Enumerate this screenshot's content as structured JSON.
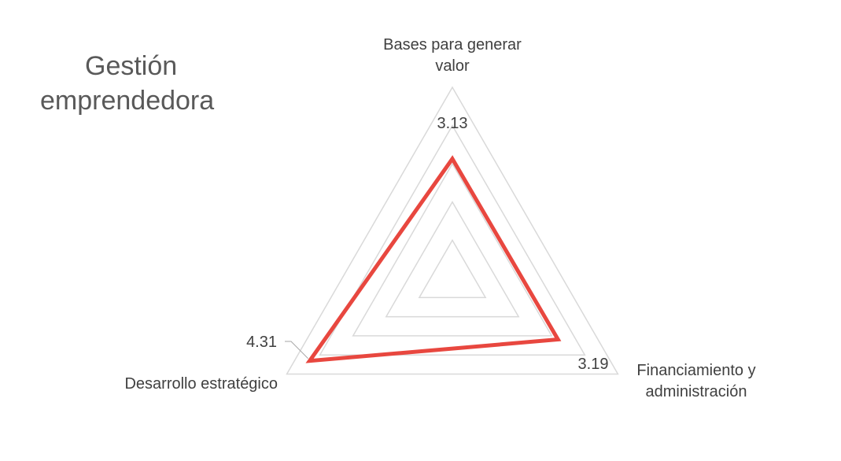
{
  "chart_data": {
    "type": "radar",
    "title_lines": [
      "Gestión",
      "emprendedora"
    ],
    "categories": [
      {
        "lines": [
          "Bases para generar",
          "valor"
        ]
      },
      {
        "lines": [
          "Financiamiento y",
          "administración"
        ]
      },
      {
        "lines": [
          "Desarrollo estratégico"
        ]
      }
    ],
    "series": [
      {
        "values": [
          3.13,
          3.19,
          4.31
        ],
        "data_labels": [
          "3.13",
          "3.19",
          "4.31"
        ],
        "color": "#e8473f"
      }
    ],
    "rlim": [
      0,
      5
    ],
    "gridlines": [
      1,
      2,
      3,
      4,
      5
    ],
    "grid": true,
    "legend": "none"
  }
}
